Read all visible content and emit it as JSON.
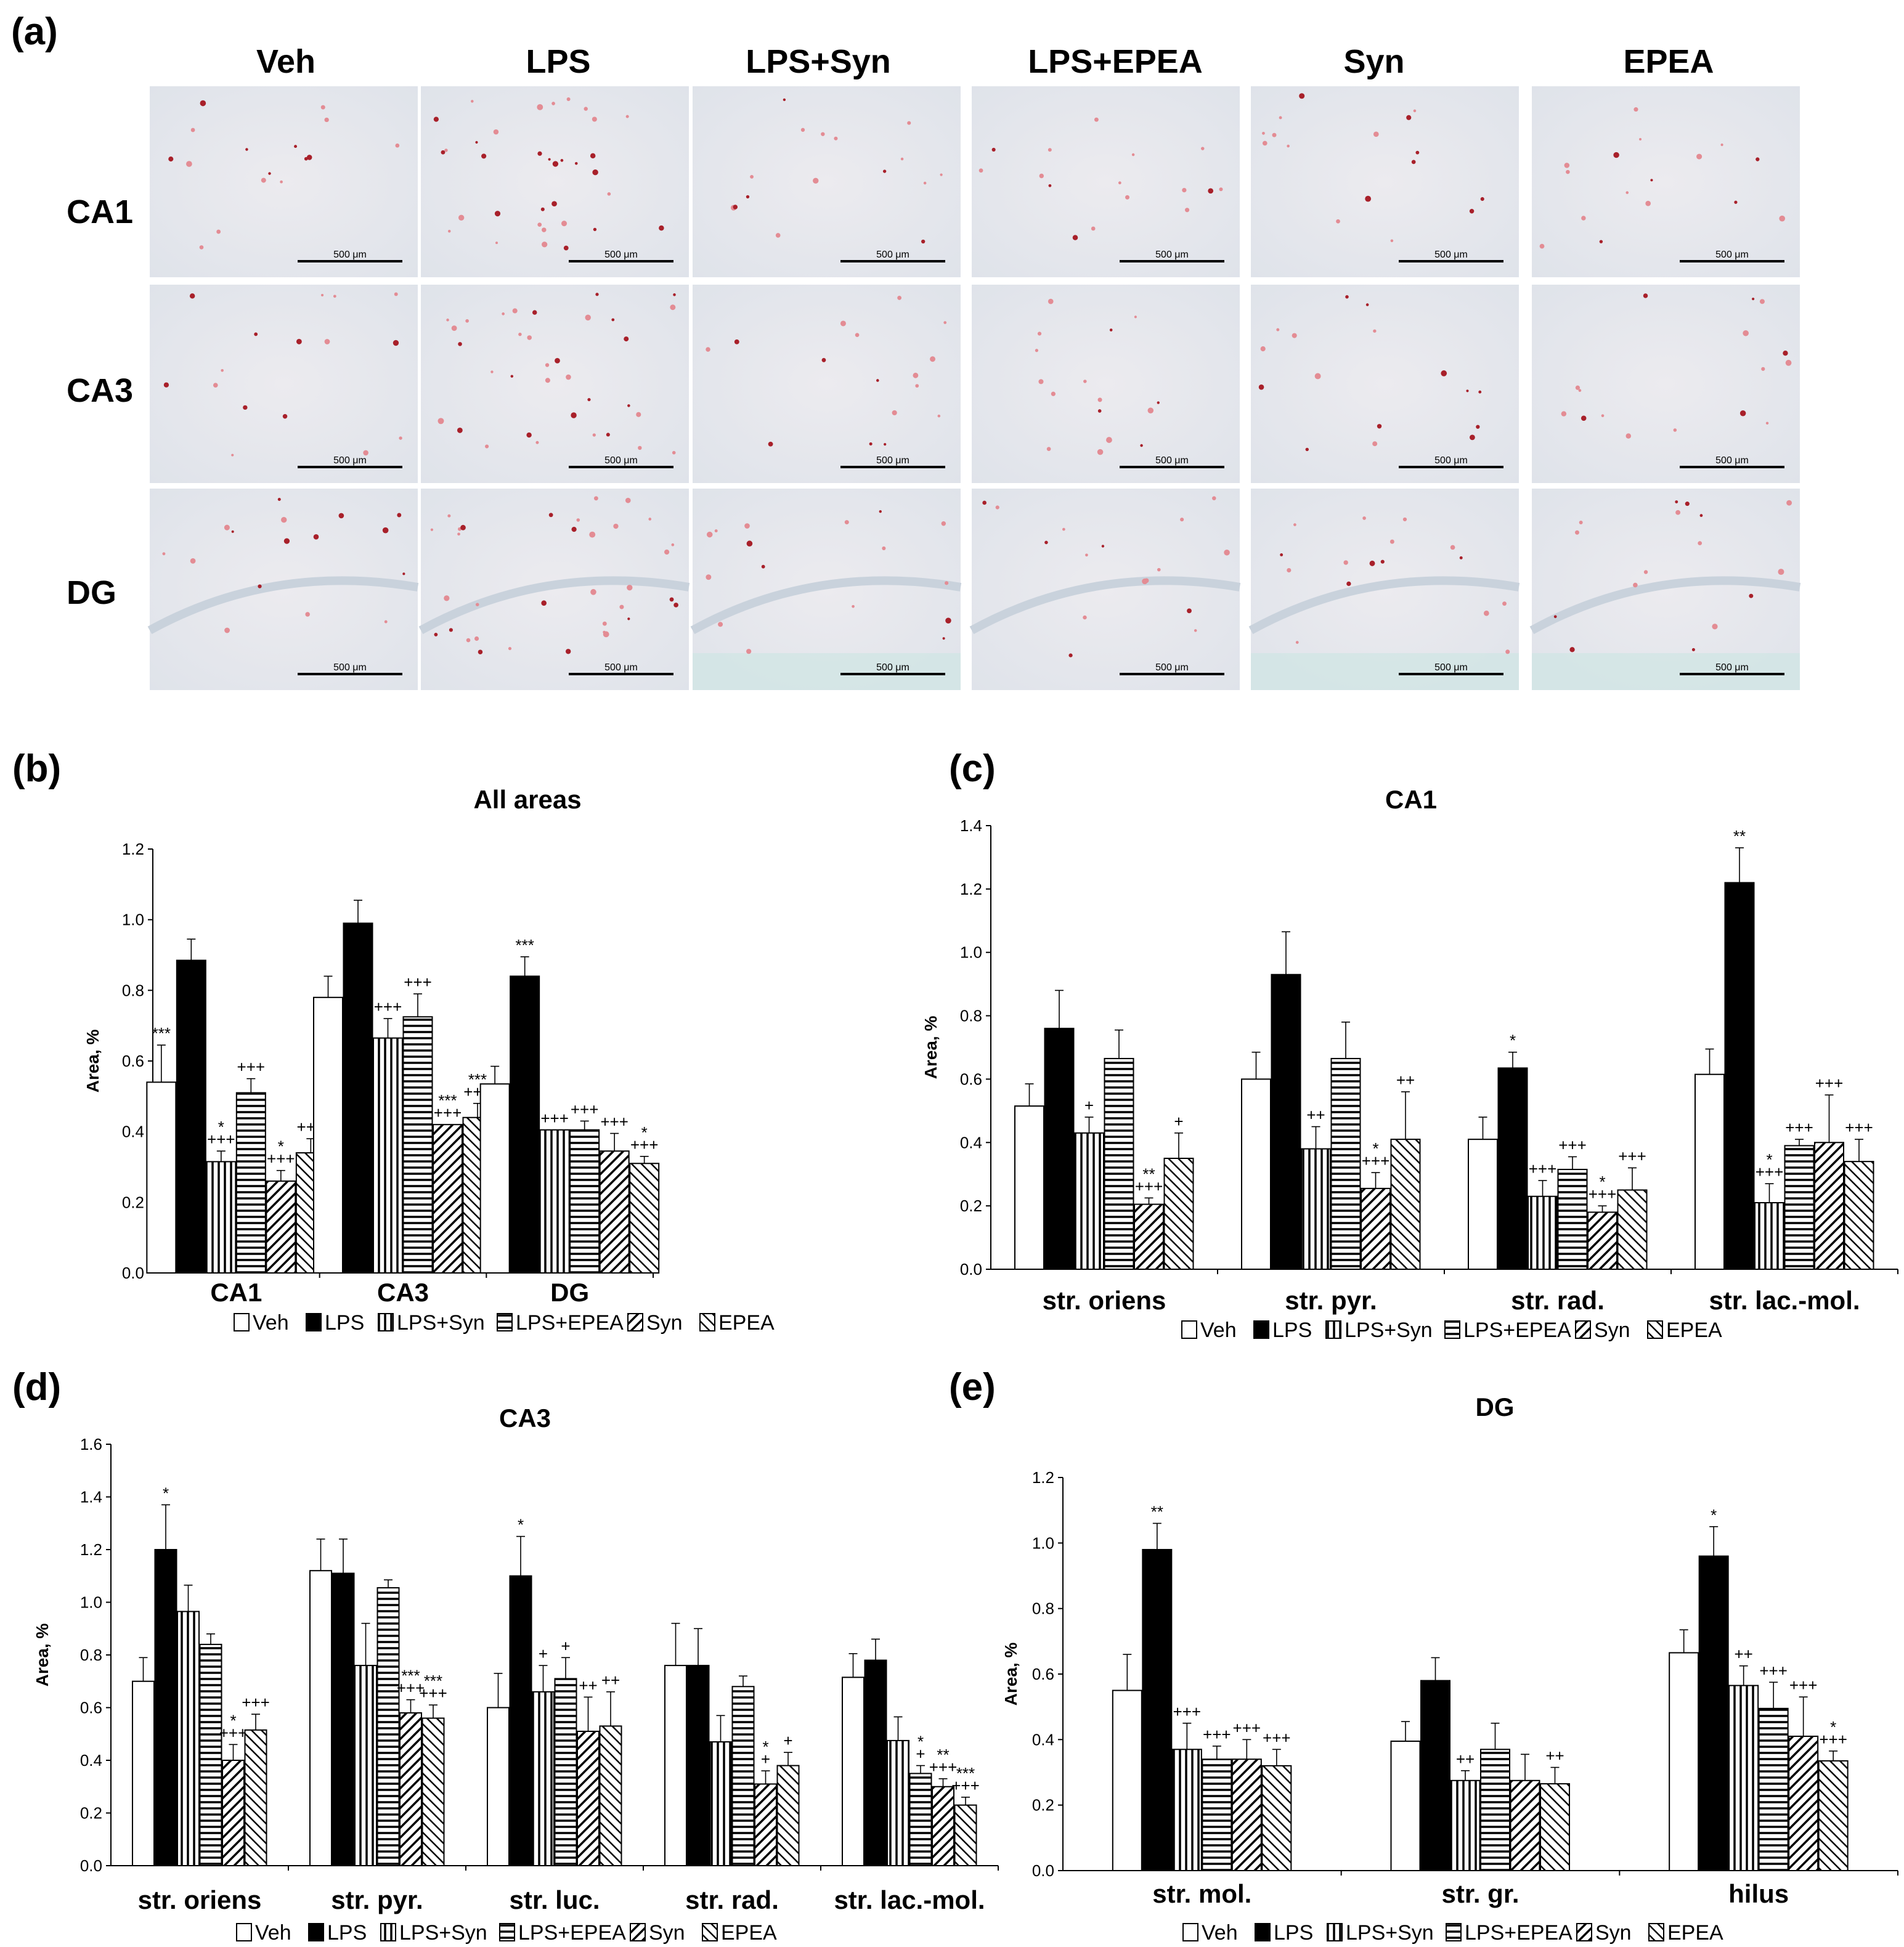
{
  "panel_a": {
    "label": "(a)",
    "columns": [
      "Veh",
      "LPS",
      "LPS+Syn",
      "LPS+EPEA",
      "Syn",
      "EPEA"
    ],
    "rows": [
      "CA1",
      "CA3",
      "DG"
    ],
    "scalebar": "500 μm"
  },
  "groups": [
    "Veh",
    "LPS",
    "LPS+Syn",
    "LPS+EPEA",
    "Syn",
    "EPEA"
  ],
  "chart_data": [
    {
      "id": "b",
      "panel_label": "(b)",
      "type": "bar",
      "title": "All areas",
      "ylabel": "Area, %",
      "ylim": [
        0,
        1.2
      ],
      "yticks": [
        "0.0",
        "0.2",
        "0.4",
        "0.6",
        "0.8",
        "1.0",
        "1.2"
      ],
      "categories": [
        "CA1",
        "CA3",
        "DG"
      ],
      "series": [
        {
          "name": "Veh",
          "values": [
            0.54,
            0.78,
            0.535
          ],
          "errors": [
            0.105,
            0.06,
            0.05
          ]
        },
        {
          "name": "LPS",
          "values": [
            0.885,
            0.99,
            0.84
          ],
          "errors": [
            0.06,
            0.065,
            0.055
          ]
        },
        {
          "name": "LPS+Syn",
          "values": [
            0.315,
            0.665,
            0.405
          ],
          "errors": [
            0.03,
            0.055,
            0.0
          ]
        },
        {
          "name": "LPS+EPEA",
          "values": [
            0.51,
            0.725,
            0.405
          ],
          "errors": [
            0.04,
            0.065,
            0.025
          ]
        },
        {
          "name": "Syn",
          "values": [
            0.26,
            0.42,
            0.345
          ],
          "errors": [
            0.03,
            0.0,
            0.05
          ]
        },
        {
          "name": "EPEA",
          "values": [
            0.34,
            0.44,
            0.31
          ],
          "errors": [
            0.04,
            0.04,
            0.02
          ]
        }
      ],
      "annotations": [
        [
          "***",
          "",
          "*\n+++",
          "+++",
          "*\n+++",
          "+++"
        ],
        [
          "",
          "",
          "+++",
          "+++",
          "***\n+++",
          "***\n+++"
        ],
        [
          "",
          "***",
          "+++",
          "+++",
          "+++",
          "*\n+++"
        ]
      ]
    },
    {
      "id": "c",
      "panel_label": "(c)",
      "type": "bar",
      "title": "CA1",
      "ylabel": "Area, %",
      "ylim": [
        0,
        1.4
      ],
      "yticks": [
        "0.0",
        "0.2",
        "0.4",
        "0.6",
        "0.8",
        "1.0",
        "1.2",
        "1.4"
      ],
      "categories": [
        "str. oriens",
        "str. pyr.",
        "str. rad.",
        "str. lac.-mol."
      ],
      "series": [
        {
          "name": "Veh",
          "values": [
            0.515,
            0.6,
            0.41,
            0.615
          ],
          "errors": [
            0.07,
            0.085,
            0.07,
            0.08
          ]
        },
        {
          "name": "LPS",
          "values": [
            0.76,
            0.93,
            0.635,
            1.22
          ],
          "errors": [
            0.12,
            0.135,
            0.05,
            0.11
          ]
        },
        {
          "name": "LPS+Syn",
          "values": [
            0.43,
            0.38,
            0.23,
            0.21
          ],
          "errors": [
            0.05,
            0.07,
            0.05,
            0.06
          ]
        },
        {
          "name": "LPS+EPEA",
          "values": [
            0.665,
            0.665,
            0.315,
            0.39
          ],
          "errors": [
            0.09,
            0.115,
            0.04,
            0.02
          ]
        },
        {
          "name": "Syn",
          "values": [
            0.205,
            0.255,
            0.18,
            0.4
          ],
          "errors": [
            0.02,
            0.05,
            0.02,
            0.15
          ]
        },
        {
          "name": "EPEA",
          "values": [
            0.35,
            0.41,
            0.25,
            0.34
          ],
          "errors": [
            0.08,
            0.15,
            0.07,
            0.07
          ]
        }
      ],
      "annotations": [
        [
          "",
          "",
          "+",
          "",
          "**\n+++",
          "+"
        ],
        [
          "",
          "",
          "++",
          "",
          "*\n+++",
          "++"
        ],
        [
          "",
          "*",
          "+++",
          "+++",
          "*\n+++",
          "+++"
        ],
        [
          "",
          "**",
          "*\n+++",
          "+++",
          "+++",
          "+++"
        ]
      ]
    },
    {
      "id": "d",
      "panel_label": "(d)",
      "type": "bar",
      "title": "CA3",
      "ylabel": "Area, %",
      "ylim": [
        0,
        1.6
      ],
      "yticks": [
        "0.0",
        "0.2",
        "0.4",
        "0.6",
        "0.8",
        "1.0",
        "1.2",
        "1.4",
        "1.6"
      ],
      "categories": [
        "str. oriens",
        "str. pyr.",
        "str. luc.",
        "str. rad.",
        "str. lac.-mol."
      ],
      "series": [
        {
          "name": "Veh",
          "values": [
            0.7,
            1.12,
            0.6,
            0.76,
            0.715
          ],
          "errors": [
            0.09,
            0.12,
            0.13,
            0.16,
            0.09
          ]
        },
        {
          "name": "LPS",
          "values": [
            1.2,
            1.11,
            1.1,
            0.76,
            0.78
          ],
          "errors": [
            0.17,
            0.13,
            0.15,
            0.14,
            0.08
          ]
        },
        {
          "name": "LPS+Syn",
          "values": [
            0.965,
            0.76,
            0.66,
            0.47,
            0.475
          ],
          "errors": [
            0.1,
            0.16,
            0.1,
            0.1,
            0.09
          ]
        },
        {
          "name": "LPS+EPEA",
          "values": [
            0.84,
            1.055,
            0.71,
            0.68,
            0.35
          ],
          "errors": [
            0.04,
            0.03,
            0.08,
            0.04,
            0.03
          ]
        },
        {
          "name": "Syn",
          "values": [
            0.4,
            0.58,
            0.51,
            0.31,
            0.3
          ],
          "errors": [
            0.06,
            0.05,
            0.13,
            0.05,
            0.03
          ]
        },
        {
          "name": "EPEA",
          "values": [
            0.515,
            0.56,
            0.53,
            0.38,
            0.23
          ],
          "errors": [
            0.06,
            0.05,
            0.13,
            0.05,
            0.03
          ]
        }
      ],
      "annotations": [
        [
          "",
          "*",
          "",
          "",
          "*\n+++",
          "+++"
        ],
        [
          "",
          "",
          "",
          "",
          "***\n+++",
          "***\n+++"
        ],
        [
          "",
          "*",
          "+",
          "+",
          "++",
          "++"
        ],
        [
          "",
          "",
          "",
          "",
          "*\n+",
          "+"
        ],
        [
          "",
          "",
          "",
          "*\n+",
          "**\n+++",
          "***\n+++"
        ]
      ]
    },
    {
      "id": "e",
      "panel_label": "(e)",
      "type": "bar",
      "title": "DG",
      "ylabel": "Area, %",
      "ylim": [
        0,
        1.2
      ],
      "yticks": [
        "0.0",
        "0.2",
        "0.4",
        "0.6",
        "0.8",
        "1.0",
        "1.2"
      ],
      "categories": [
        "str. mol.",
        "str. gr.",
        "hilus"
      ],
      "series": [
        {
          "name": "Veh",
          "values": [
            0.55,
            0.395,
            0.665
          ],
          "errors": [
            0.11,
            0.06,
            0.07
          ]
        },
        {
          "name": "LPS",
          "values": [
            0.98,
            0.58,
            0.96
          ],
          "errors": [
            0.08,
            0.07,
            0.09
          ]
        },
        {
          "name": "LPS+Syn",
          "values": [
            0.37,
            0.275,
            0.565
          ],
          "errors": [
            0.08,
            0.03,
            0.06
          ]
        },
        {
          "name": "LPS+EPEA",
          "values": [
            0.34,
            0.37,
            0.495
          ],
          "errors": [
            0.04,
            0.08,
            0.08
          ]
        },
        {
          "name": "Syn",
          "values": [
            0.34,
            0.275,
            0.41
          ],
          "errors": [
            0.06,
            0.08,
            0.12
          ]
        },
        {
          "name": "EPEA",
          "values": [
            0.32,
            0.265,
            0.335
          ],
          "errors": [
            0.05,
            0.05,
            0.03
          ]
        }
      ],
      "annotations": [
        [
          "",
          "**",
          "+++",
          "+++",
          "+++",
          "+++"
        ],
        [
          "",
          "",
          "++",
          "",
          "",
          "++"
        ],
        [
          "",
          "*",
          "++",
          "+++",
          "+++",
          "*\n+++"
        ]
      ]
    }
  ]
}
